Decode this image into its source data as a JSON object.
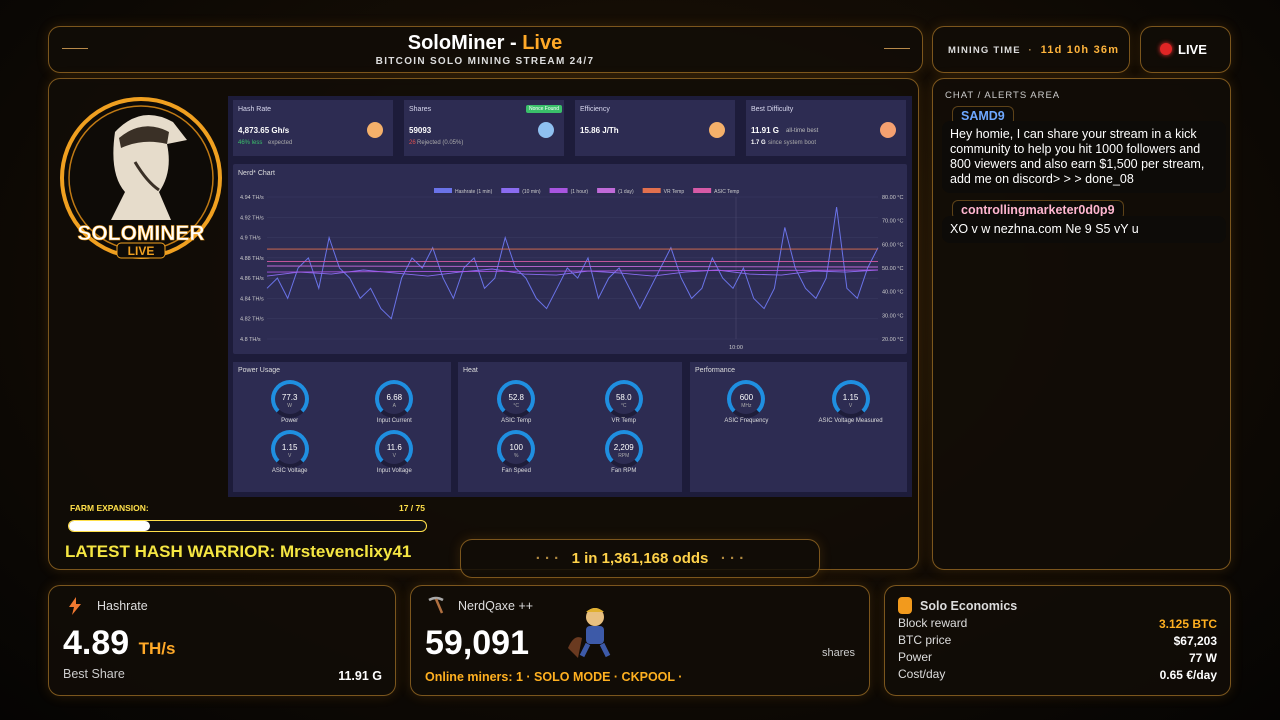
{
  "header": {
    "title": "SoloMiner",
    "separator": "-",
    "title_live": "Live",
    "subtitle": "BITCOIN SOLO MINING STREAM 24/7"
  },
  "mining_time": {
    "label": "MINING TIME",
    "dot": "·",
    "value": "11d 10h 36m"
  },
  "live_badge": "LIVE",
  "logo": {
    "name": "SOLOMINER",
    "tag": "LIVE"
  },
  "dashboard": {
    "cards": [
      {
        "title": "Hash Rate",
        "value": "4,873.65 Gh/s",
        "sub_highlight": "46% less",
        "sub": "expected"
      },
      {
        "title": "Shares",
        "badge": "Nonce Found",
        "value": "59093",
        "sub_highlight": "26",
        "sub": "Rejected (0.05%)"
      },
      {
        "title": "Efficiency",
        "value": "15.86 J/Th"
      },
      {
        "title": "Best Difficulty",
        "value": "11.91 G",
        "value_note": "all-time best",
        "sub_highlight": "1.7 G",
        "sub": "since system boot"
      }
    ],
    "nerd_chart": {
      "type": "line",
      "title": "Nerd* Chart",
      "x_tick": "10:00",
      "ylim": [
        4.8,
        4.94
      ],
      "yticks": [
        {
          "value": 4.94,
          "label": "4.94 TH/s"
        },
        {
          "value": 4.92,
          "label": "4.92 TH/s"
        },
        {
          "value": 4.9,
          "label": "4.9 TH/s"
        },
        {
          "value": 4.88,
          "label": "4.88 TH/s"
        },
        {
          "value": 4.86,
          "label": "4.86 TH/s"
        },
        {
          "value": 4.84,
          "label": "4.84 TH/s"
        },
        {
          "value": 4.82,
          "label": "4.82 TH/s"
        },
        {
          "value": 4.8,
          "label": "4.8 TH/s"
        }
      ],
      "y2lim": [
        20,
        80
      ],
      "y2ticks": [
        {
          "value": 80,
          "label": "80.00 °C"
        },
        {
          "value": 70,
          "label": "70.00 °C"
        },
        {
          "value": 60,
          "label": "60.00 °C"
        },
        {
          "value": 50,
          "label": "50.00 °C"
        },
        {
          "value": 40,
          "label": "40.00 °C"
        },
        {
          "value": 30,
          "label": "30.00 °C"
        },
        {
          "value": 20,
          "label": "20.00 °C"
        }
      ],
      "series": [
        {
          "name": "Hashrate (1 min)",
          "color": "#6a73e8",
          "values": [
            4.85,
            4.86,
            4.84,
            4.87,
            4.88,
            4.85,
            4.9,
            4.87,
            4.86,
            4.84,
            4.85,
            4.83,
            4.82,
            4.86,
            4.88,
            4.87,
            4.89,
            4.86,
            4.84,
            4.87,
            4.88,
            4.85,
            4.86,
            4.9,
            4.87,
            4.86,
            4.84,
            4.83,
            4.85,
            4.87,
            4.86,
            4.88,
            4.84,
            4.86,
            4.87,
            4.85,
            4.83,
            4.85,
            4.87,
            4.89,
            4.86,
            4.84,
            4.85,
            4.88,
            4.86,
            4.85,
            4.87,
            4.84,
            4.83,
            4.85,
            4.91,
            4.87,
            4.85,
            4.84,
            4.86,
            4.93,
            4.85,
            4.84,
            4.87,
            4.89
          ]
        },
        {
          "name": "(10 min)",
          "color": "#8a6cf0",
          "values": [
            4.862,
            4.866,
            4.864,
            4.868,
            4.865,
            4.862,
            4.866,
            4.869,
            4.864,
            4.863,
            4.867,
            4.865,
            4.862,
            4.866,
            4.868,
            4.864,
            4.863,
            4.867,
            4.866,
            4.868
          ]
        },
        {
          "name": "(1 hour)",
          "color": "#a855e0",
          "values": [
            4.866,
            4.868
          ]
        },
        {
          "name": "(1 day)",
          "color": "#c06ad8",
          "values": [
            4.872,
            4.871
          ]
        },
        {
          "name": "VR Temp",
          "color": "#e2704e",
          "axis": "y2",
          "values": [
            58,
            58
          ]
        },
        {
          "name": "ASIC Temp",
          "color": "#d65aa6",
          "axis": "y2",
          "values": [
            52.8,
            52.8
          ]
        }
      ]
    },
    "panels": [
      {
        "title": "Power Usage",
        "gauges": [
          {
            "value": "77.3",
            "unit": "W",
            "label": "Power"
          },
          {
            "value": "6.68",
            "unit": "A",
            "label": "Input Current"
          },
          {
            "value": "1.15",
            "unit": "V",
            "label": "ASIC Voltage"
          },
          {
            "value": "11.6",
            "unit": "V",
            "label": "Input Voltage"
          }
        ]
      },
      {
        "title": "Heat",
        "gauges": [
          {
            "value": "52.8",
            "unit": "°C",
            "label": "ASIC Temp"
          },
          {
            "value": "58.0",
            "unit": "°C",
            "label": "VR Temp"
          },
          {
            "value": "100",
            "unit": "%",
            "label": "Fan Speed"
          },
          {
            "value": "2,209",
            "unit": "RPM",
            "label": "Fan RPM"
          }
        ]
      },
      {
        "title": "Performance",
        "gauges": [
          {
            "value": "600",
            "unit": "MHz",
            "label": "ASIC Frequency"
          },
          {
            "value": "1.15",
            "unit": "V",
            "label": "ASIC Voltage Measured"
          }
        ]
      }
    ]
  },
  "farm": {
    "label": "FARM EXPANSION:",
    "current": 17,
    "total": 75
  },
  "warrior": "LATEST HASH WARRIOR: Mrstevenclixy41",
  "odds": {
    "dots": "· · ·",
    "text": "1 in 1,361,168 odds"
  },
  "chat": {
    "title": "CHAT / ALERTS AREA",
    "messages": [
      {
        "user": "SAMD9",
        "text": "Hey homie, I can share your stream in a kick community to help you hit 1000 followers and 800 viewers and also earn $1,500 per stream, add me on discord> > > done_08"
      },
      {
        "user": "controllingmarketer0d0p9",
        "text": "XO v w nezhna.com Ne 9 S5 vY u"
      }
    ]
  },
  "hashrate_card": {
    "title": "Hashrate",
    "value": "4.89",
    "unit": "TH/s",
    "best_label": "Best Share",
    "best_value": "11.91 G"
  },
  "miner_card": {
    "title": "NerdQaxe ++",
    "value": "59,091",
    "unit": "shares",
    "status": "Online miners: 1 · SOLO MODE · CKPOOL ·"
  },
  "economics": {
    "title": "Solo Economics",
    "rows": [
      [
        "Block reward",
        "3.125 BTC"
      ],
      [
        "BTC price",
        "$67,203"
      ],
      [
        "Power",
        "77 W"
      ],
      [
        "Cost/day",
        "0.65 €/day"
      ]
    ]
  }
}
